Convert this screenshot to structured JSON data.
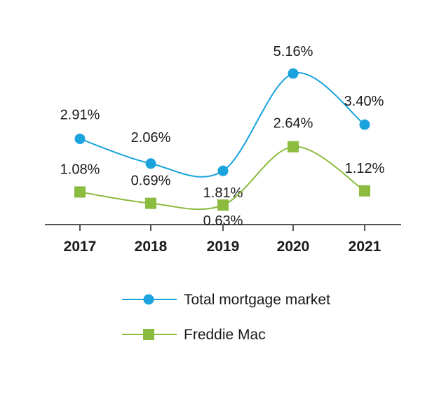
{
  "chart_data": {
    "type": "line",
    "categories": [
      "2017",
      "2018",
      "2019",
      "2020",
      "2021"
    ],
    "series": [
      {
        "name": "Total mortgage market",
        "values": [
          2.91,
          2.06,
          1.81,
          5.16,
          3.4
        ],
        "labels": [
          "2.91%",
          "2.06%",
          "1.81%",
          "5.16%",
          "3.40%"
        ],
        "color": "#1aa3dc",
        "marker": "circle"
      },
      {
        "name": "Freddie Mac",
        "values": [
          1.08,
          0.69,
          0.63,
          2.64,
          1.12
        ],
        "labels": [
          "1.08%",
          "0.69%",
          "0.63%",
          "2.64%",
          "1.12%"
        ],
        "color": "#8bbb3f",
        "marker": "square"
      }
    ],
    "ylim": [
      0,
      5.5
    ],
    "grid": false,
    "legend_position": "bottom"
  }
}
